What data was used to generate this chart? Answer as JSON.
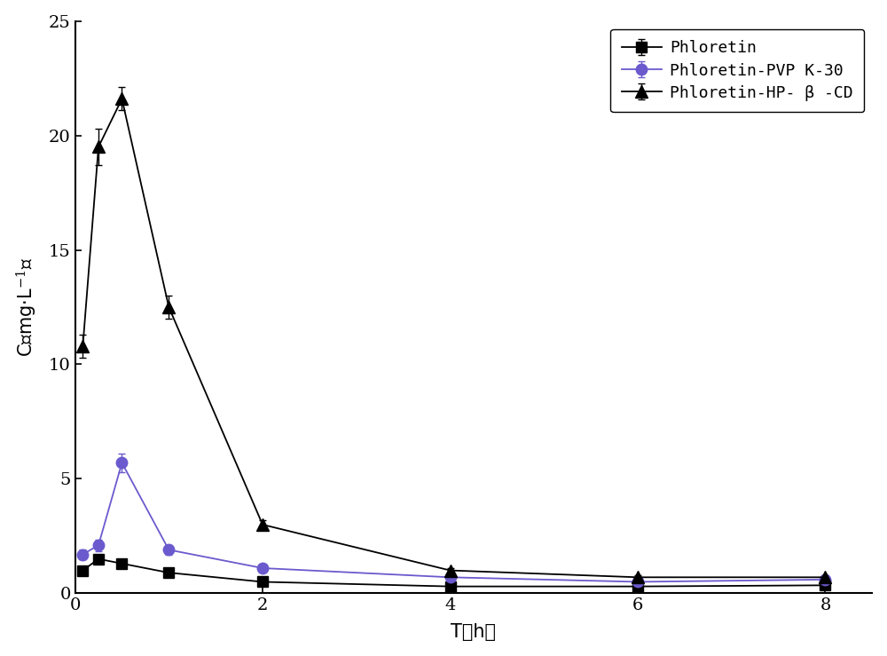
{
  "series": [
    {
      "label": "Phloretin",
      "color": "#000000",
      "marker": "s",
      "x": [
        0.083,
        0.25,
        0.5,
        1.0,
        2.0,
        4.0,
        6.0,
        8.0
      ],
      "y": [
        1.0,
        1.5,
        1.3,
        0.9,
        0.5,
        0.3,
        0.3,
        0.35
      ],
      "yerr": [
        0.15,
        0.2,
        0.15,
        0.1,
        0.08,
        0.05,
        0.05,
        0.05
      ]
    },
    {
      "label": "Phloretin-PVP K-30",
      "color": "#6a5acd",
      "marker": "o",
      "x": [
        0.083,
        0.25,
        0.5,
        1.0,
        2.0,
        4.0,
        6.0,
        8.0
      ],
      "y": [
        1.7,
        2.1,
        5.7,
        1.9,
        1.1,
        0.7,
        0.5,
        0.6
      ],
      "yerr": [
        0.2,
        0.25,
        0.4,
        0.2,
        0.1,
        0.1,
        0.08,
        0.08
      ]
    },
    {
      "label": "Phloretin-HP- β -CD",
      "color": "#000000",
      "marker": "^",
      "x": [
        0.083,
        0.25,
        0.5,
        1.0,
        2.0,
        4.0,
        6.0,
        8.0
      ],
      "y": [
        10.8,
        19.5,
        21.6,
        12.5,
        3.0,
        1.0,
        0.7,
        0.7
      ],
      "yerr": [
        0.5,
        0.8,
        0.5,
        0.5,
        0.2,
        0.1,
        0.1,
        0.1
      ]
    }
  ],
  "xlim": [
    0,
    8.5
  ],
  "ylim": [
    0,
    25
  ],
  "xticks": [
    0,
    2,
    4,
    6,
    8
  ],
  "yticks": [
    0,
    5,
    10,
    15,
    20,
    25
  ],
  "background_color": "#ffffff",
  "font_size": 15,
  "legend_font_size": 13,
  "marker_sizes": {
    "s": 8,
    "o": 9,
    "^": 10
  }
}
